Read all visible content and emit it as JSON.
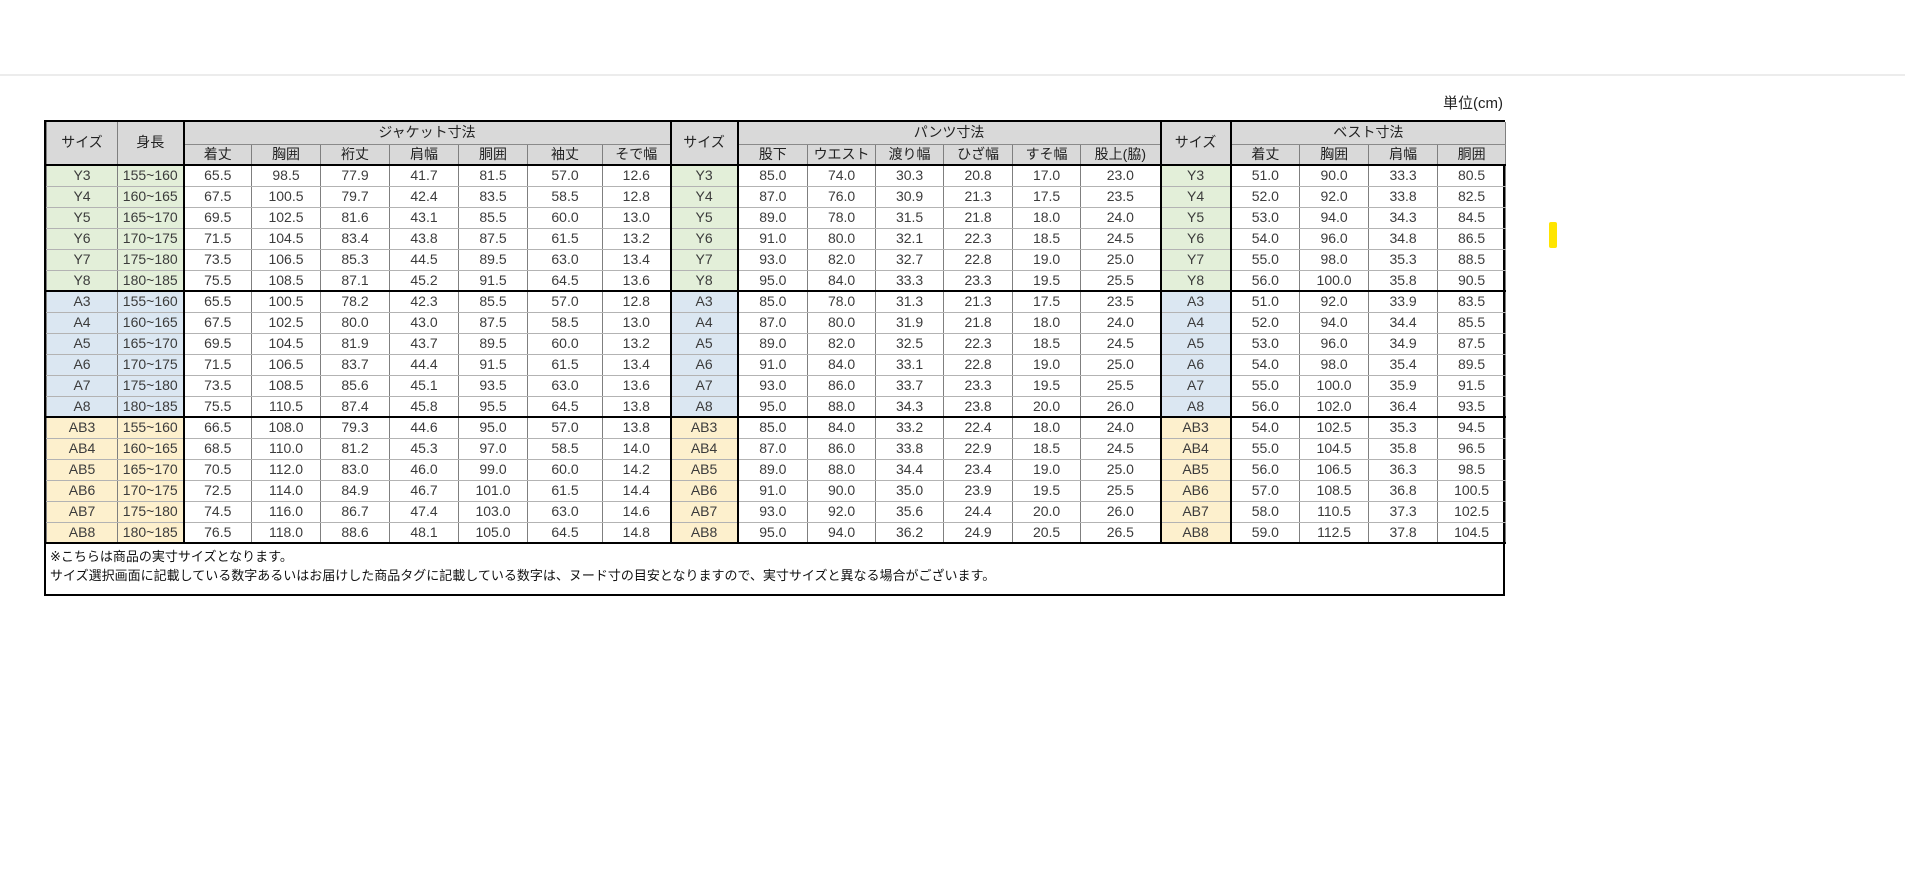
{
  "unit_label": "単位(cm)",
  "table": {
    "col_headers": {
      "size": "サイズ",
      "height": "身長"
    },
    "groups": [
      {
        "id": "jacket",
        "label": "ジャケット寸法",
        "columns": [
          "着丈",
          "胸囲",
          "裄丈",
          "肩幅",
          "胴囲",
          "袖丈",
          "そで幅"
        ]
      },
      {
        "id": "pants",
        "label": "パンツ寸法",
        "columns": [
          "股下",
          "ウエスト",
          "渡り幅",
          "ひざ幅",
          "すそ幅",
          "股上(脇)"
        ]
      },
      {
        "id": "vest",
        "label": "ベスト寸法",
        "columns": [
          "着丈",
          "胸囲",
          "肩幅",
          "胴囲"
        ]
      }
    ],
    "rows": [
      {
        "size": "Y3",
        "family": "y",
        "height": "155~160",
        "jacket": [
          "65.5",
          "98.5",
          "77.9",
          "41.7",
          "81.5",
          "57.0",
          "12.6"
        ],
        "pants": [
          "85.0",
          "74.0",
          "30.3",
          "20.8",
          "17.0",
          "23.0"
        ],
        "vest": [
          "51.0",
          "90.0",
          "33.3",
          "80.5"
        ]
      },
      {
        "size": "Y4",
        "family": "y",
        "height": "160~165",
        "jacket": [
          "67.5",
          "100.5",
          "79.7",
          "42.4",
          "83.5",
          "58.5",
          "12.8"
        ],
        "pants": [
          "87.0",
          "76.0",
          "30.9",
          "21.3",
          "17.5",
          "23.5"
        ],
        "vest": [
          "52.0",
          "92.0",
          "33.8",
          "82.5"
        ]
      },
      {
        "size": "Y5",
        "family": "y",
        "height": "165~170",
        "jacket": [
          "69.5",
          "102.5",
          "81.6",
          "43.1",
          "85.5",
          "60.0",
          "13.0"
        ],
        "pants": [
          "89.0",
          "78.0",
          "31.5",
          "21.8",
          "18.0",
          "24.0"
        ],
        "vest": [
          "53.0",
          "94.0",
          "34.3",
          "84.5"
        ]
      },
      {
        "size": "Y6",
        "family": "y",
        "height": "170~175",
        "jacket": [
          "71.5",
          "104.5",
          "83.4",
          "43.8",
          "87.5",
          "61.5",
          "13.2"
        ],
        "pants": [
          "91.0",
          "80.0",
          "32.1",
          "22.3",
          "18.5",
          "24.5"
        ],
        "vest": [
          "54.0",
          "96.0",
          "34.8",
          "86.5"
        ]
      },
      {
        "size": "Y7",
        "family": "y",
        "height": "175~180",
        "jacket": [
          "73.5",
          "106.5",
          "85.3",
          "44.5",
          "89.5",
          "63.0",
          "13.4"
        ],
        "pants": [
          "93.0",
          "82.0",
          "32.7",
          "22.8",
          "19.0",
          "25.0"
        ],
        "vest": [
          "55.0",
          "98.0",
          "35.3",
          "88.5"
        ]
      },
      {
        "size": "Y8",
        "family": "y",
        "height": "180~185",
        "jacket": [
          "75.5",
          "108.5",
          "87.1",
          "45.2",
          "91.5",
          "64.5",
          "13.6"
        ],
        "pants": [
          "95.0",
          "84.0",
          "33.3",
          "23.3",
          "19.5",
          "25.5"
        ],
        "vest": [
          "56.0",
          "100.0",
          "35.8",
          "90.5"
        ]
      },
      {
        "size": "A3",
        "family": "a",
        "height": "155~160",
        "jacket": [
          "65.5",
          "100.5",
          "78.2",
          "42.3",
          "85.5",
          "57.0",
          "12.8"
        ],
        "pants": [
          "85.0",
          "78.0",
          "31.3",
          "21.3",
          "17.5",
          "23.5"
        ],
        "vest": [
          "51.0",
          "92.0",
          "33.9",
          "83.5"
        ]
      },
      {
        "size": "A4",
        "family": "a",
        "height": "160~165",
        "jacket": [
          "67.5",
          "102.5",
          "80.0",
          "43.0",
          "87.5",
          "58.5",
          "13.0"
        ],
        "pants": [
          "87.0",
          "80.0",
          "31.9",
          "21.8",
          "18.0",
          "24.0"
        ],
        "vest": [
          "52.0",
          "94.0",
          "34.4",
          "85.5"
        ]
      },
      {
        "size": "A5",
        "family": "a",
        "height": "165~170",
        "jacket": [
          "69.5",
          "104.5",
          "81.9",
          "43.7",
          "89.5",
          "60.0",
          "13.2"
        ],
        "pants": [
          "89.0",
          "82.0",
          "32.5",
          "22.3",
          "18.5",
          "24.5"
        ],
        "vest": [
          "53.0",
          "96.0",
          "34.9",
          "87.5"
        ]
      },
      {
        "size": "A6",
        "family": "a",
        "height": "170~175",
        "jacket": [
          "71.5",
          "106.5",
          "83.7",
          "44.4",
          "91.5",
          "61.5",
          "13.4"
        ],
        "pants": [
          "91.0",
          "84.0",
          "33.1",
          "22.8",
          "19.0",
          "25.0"
        ],
        "vest": [
          "54.0",
          "98.0",
          "35.4",
          "89.5"
        ]
      },
      {
        "size": "A7",
        "family": "a",
        "height": "175~180",
        "jacket": [
          "73.5",
          "108.5",
          "85.6",
          "45.1",
          "93.5",
          "63.0",
          "13.6"
        ],
        "pants": [
          "93.0",
          "86.0",
          "33.7",
          "23.3",
          "19.5",
          "25.5"
        ],
        "vest": [
          "55.0",
          "100.0",
          "35.9",
          "91.5"
        ]
      },
      {
        "size": "A8",
        "family": "a",
        "height": "180~185",
        "jacket": [
          "75.5",
          "110.5",
          "87.4",
          "45.8",
          "95.5",
          "64.5",
          "13.8"
        ],
        "pants": [
          "95.0",
          "88.0",
          "34.3",
          "23.8",
          "20.0",
          "26.0"
        ],
        "vest": [
          "56.0",
          "102.0",
          "36.4",
          "93.5"
        ]
      },
      {
        "size": "AB3",
        "family": "ab",
        "height": "155~160",
        "jacket": [
          "66.5",
          "108.0",
          "79.3",
          "44.6",
          "95.0",
          "57.0",
          "13.8"
        ],
        "pants": [
          "85.0",
          "84.0",
          "33.2",
          "22.4",
          "18.0",
          "24.0"
        ],
        "vest": [
          "54.0",
          "102.5",
          "35.3",
          "94.5"
        ]
      },
      {
        "size": "AB4",
        "family": "ab",
        "height": "160~165",
        "jacket": [
          "68.5",
          "110.0",
          "81.2",
          "45.3",
          "97.0",
          "58.5",
          "14.0"
        ],
        "pants": [
          "87.0",
          "86.0",
          "33.8",
          "22.9",
          "18.5",
          "24.5"
        ],
        "vest": [
          "55.0",
          "104.5",
          "35.8",
          "96.5"
        ]
      },
      {
        "size": "AB5",
        "family": "ab",
        "height": "165~170",
        "jacket": [
          "70.5",
          "112.0",
          "83.0",
          "46.0",
          "99.0",
          "60.0",
          "14.2"
        ],
        "pants": [
          "89.0",
          "88.0",
          "34.4",
          "23.4",
          "19.0",
          "25.0"
        ],
        "vest": [
          "56.0",
          "106.5",
          "36.3",
          "98.5"
        ]
      },
      {
        "size": "AB6",
        "family": "ab",
        "height": "170~175",
        "jacket": [
          "72.5",
          "114.0",
          "84.9",
          "46.7",
          "101.0",
          "61.5",
          "14.4"
        ],
        "pants": [
          "91.0",
          "90.0",
          "35.0",
          "23.9",
          "19.5",
          "25.5"
        ],
        "vest": [
          "57.0",
          "108.5",
          "36.8",
          "100.5"
        ]
      },
      {
        "size": "AB7",
        "family": "ab",
        "height": "175~180",
        "jacket": [
          "74.5",
          "116.0",
          "86.7",
          "47.4",
          "103.0",
          "63.0",
          "14.6"
        ],
        "pants": [
          "93.0",
          "92.0",
          "35.6",
          "24.4",
          "20.0",
          "26.0"
        ],
        "vest": [
          "58.0",
          "110.5",
          "37.3",
          "102.5"
        ]
      },
      {
        "size": "AB8",
        "family": "ab",
        "height": "180~185",
        "jacket": [
          "76.5",
          "118.0",
          "88.6",
          "48.1",
          "105.0",
          "64.5",
          "14.8"
        ],
        "pants": [
          "95.0",
          "94.0",
          "36.2",
          "24.9",
          "20.5",
          "26.5"
        ],
        "vest": [
          "59.0",
          "112.5",
          "37.8",
          "104.5"
        ]
      }
    ]
  },
  "notes": [
    "※こちらは商品の実寸サイズとなります。",
    "サイズ選択画面に記載している数字あるいはお届けした商品タグに記載している数字は、ヌード寸の目安となりますので、実寸サイズと異なる場合がございます。"
  ],
  "colors": {
    "header_bg": "#d9d9d9",
    "y_row": "#e3efd9",
    "a_row": "#dbe7f2",
    "ab_row": "#fdf0cd",
    "marker": "#ffe500"
  }
}
